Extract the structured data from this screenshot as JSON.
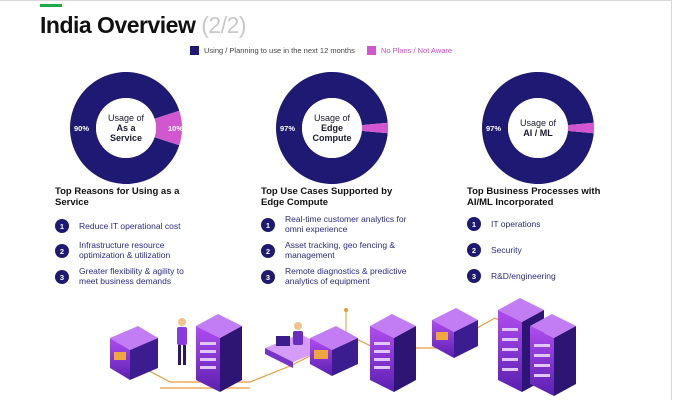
{
  "header": {
    "title": "India Overview",
    "title_suffix": "(2/2)"
  },
  "legend": {
    "items": [
      {
        "label": "Using / Planning to use in the next 12 months",
        "color": "#1e1a73"
      },
      {
        "label": "No Plans / Not Aware",
        "color": "#d257cf"
      }
    ]
  },
  "chart_data": [
    {
      "type": "pie",
      "center_label": [
        "Usage of",
        "As a",
        "Service"
      ],
      "categories": [
        "Using / Planning to use in the next 12 months",
        "No Plans / Not Aware"
      ],
      "values": [
        90,
        10
      ],
      "value_labels": [
        "90%",
        "10%"
      ],
      "colors": [
        "#1e1a73",
        "#d257cf"
      ]
    },
    {
      "type": "pie",
      "center_label": [
        "Usage of",
        "Edge",
        "Compute"
      ],
      "categories": [
        "Using / Planning to use in the next 12 months",
        "No Plans / Not Aware"
      ],
      "values": [
        97,
        3
      ],
      "value_labels": [
        "97%",
        "3%"
      ],
      "colors": [
        "#1e1a73",
        "#d257cf"
      ]
    },
    {
      "type": "pie",
      "center_label": [
        "Usage of",
        "AI / ML"
      ],
      "categories": [
        "Using / Planning to use in the next 12 months",
        "No Plans / Not Aware"
      ],
      "values": [
        97,
        3
      ],
      "value_labels": [
        "97%",
        "3%"
      ],
      "colors": [
        "#1e1a73",
        "#d257cf"
      ]
    }
  ],
  "columns": [
    {
      "title": "Top Reasons for Using as a Service",
      "items": [
        {
          "num": "1",
          "text": "Reduce IT operational cost"
        },
        {
          "num": "2",
          "text": "Infrastructure resource optimization & utilization"
        },
        {
          "num": "3",
          "text": "Greater flexibility & agility to meet business demands"
        }
      ]
    },
    {
      "title": "Top Use Cases Supported by Edge Compute",
      "items": [
        {
          "num": "1",
          "text": "Real-time customer analytics for omni experience"
        },
        {
          "num": "2",
          "text": "Asset tracking, geo fencing & management"
        },
        {
          "num": "3",
          "text": "Remote diagnostics & predictive analytics of equipment"
        }
      ]
    },
    {
      "title": "Top Business Processes with AI/ML Incorporated",
      "items": [
        {
          "num": "1",
          "text": "IT operations"
        },
        {
          "num": "2",
          "text": "Security"
        },
        {
          "num": "3",
          "text": "R&D/engineering"
        }
      ]
    }
  ]
}
